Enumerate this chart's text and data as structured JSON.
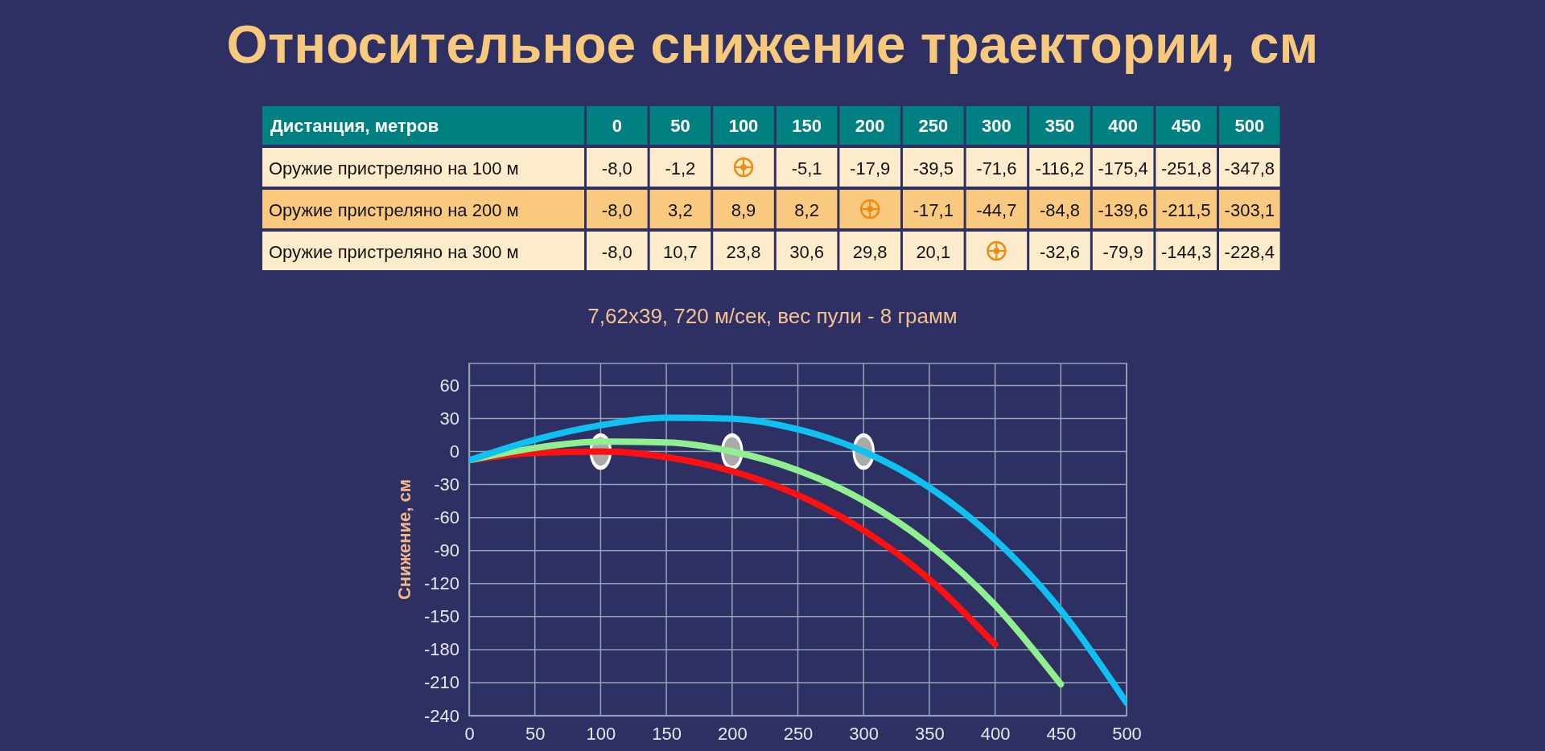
{
  "chart_data": [
    {
      "type": "heatmap",
      "title": "Относительное снижение траектории, см",
      "xlabel": "Дистанция, метров",
      "categories": [
        "0",
        "50",
        "100",
        "150",
        "200",
        "250",
        "300",
        "350",
        "400",
        "450",
        "500"
      ],
      "y_categories": [
        "Оружие пристреляно на 100 м",
        "Оружие пристреляно на 200 м",
        "Оружие пристреляно на 300 м"
      ],
      "cells": [
        [
          -8.0,
          -1.2,
          null,
          -5.1,
          -17.9,
          -39.5,
          -71.6,
          -116.2,
          -175.4,
          -251.8,
          -347.8
        ],
        [
          -8.0,
          3.2,
          8.9,
          8.2,
          null,
          -17.1,
          -44.7,
          -84.8,
          -139.6,
          -211.5,
          -303.1
        ],
        [
          -8.0,
          10.7,
          23.8,
          30.6,
          29.8,
          20.1,
          null,
          -32.6,
          -79.9,
          -144.3,
          -228.4
        ]
      ],
      "cell_labels": [
        [
          "-8,0",
          "-1,2",
          null,
          "-5,1",
          "-17,9",
          "-39,5",
          "-71,6",
          "-116,2",
          "-175,4",
          "-251,8",
          "-347,8"
        ],
        [
          "-8,0",
          "3,2",
          "8,9",
          "8,2",
          null,
          "-17,1",
          "-44,7",
          "-84,8",
          "-139,6",
          "-211,5",
          "-303,1"
        ],
        [
          "-8,0",
          "10,7",
          "23,8",
          "30,6",
          "29,8",
          "20,1",
          null,
          "-32,6",
          "-79,9",
          "-144,3",
          "-228,4"
        ]
      ]
    },
    {
      "type": "line",
      "title": "7,62x39, 720 м/сек, вес пули - 8 грамм",
      "ylabel": "Снижение, см",
      "x": [
        0,
        50,
        100,
        150,
        200,
        250,
        300,
        350,
        400,
        450,
        500
      ],
      "xlim": [
        0,
        500
      ],
      "xticks": [
        0,
        50,
        100,
        150,
        200,
        250,
        300,
        350,
        400,
        450,
        500
      ],
      "ylim": [
        -240,
        80
      ],
      "yticks": [
        -240,
        -210,
        -180,
        -150,
        -120,
        -90,
        -60,
        -30,
        0,
        30,
        60
      ],
      "grid": true,
      "marker": "none",
      "line_style": "solid",
      "series": [
        {
          "type": "scatter",
          "x": [
            100,
            200,
            300
          ],
          "color": "#aaaaaa",
          "marker": "circle",
          "values": [
            0,
            0,
            0
          ]
        },
        {
          "color": "#ff1010",
          "values": [
            -8.0,
            -1.2,
            0,
            -5.1,
            -17.9,
            -39.5,
            -71.6,
            -116.2,
            -175.4,
            null,
            null
          ]
        },
        {
          "color": "#90f090",
          "values": [
            -8.0,
            3.2,
            8.9,
            8.2,
            0,
            -17.1,
            -44.7,
            -84.8,
            -139.6,
            -211.5,
            null
          ]
        },
        {
          "color": "#10c0f0",
          "values": [
            -8.0,
            10.7,
            23.8,
            30.6,
            29.8,
            20.1,
            0,
            -32.6,
            -79.9,
            -144.3,
            -228.4
          ]
        }
      ]
    }
  ]
}
